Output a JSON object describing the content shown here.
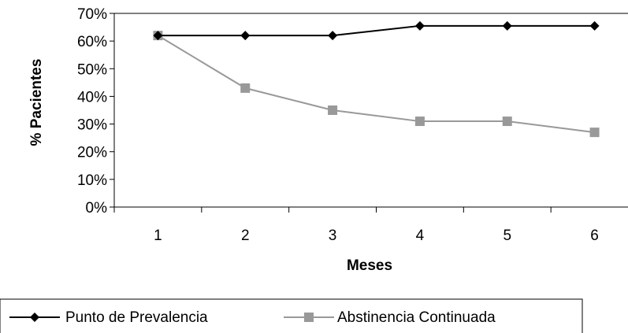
{
  "chart_data": {
    "type": "line",
    "categories": [
      "1",
      "2",
      "3",
      "4",
      "5",
      "6"
    ],
    "series": [
      {
        "name": "Punto de Prevalencia",
        "values": [
          62,
          62,
          62,
          65.5,
          65.5,
          65.5
        ],
        "color": "#000000",
        "marker": "diamond"
      },
      {
        "name": "Abstinencia Continuada",
        "values": [
          62,
          43,
          35,
          31,
          31,
          27
        ],
        "color": "#999999",
        "marker": "square"
      }
    ],
    "xlabel": "Meses",
    "ylabel": "% Pacientes",
    "ylim": [
      0,
      70
    ],
    "yticks": [
      0,
      10,
      20,
      30,
      40,
      50,
      60,
      70
    ],
    "ytick_labels": [
      "0%",
      "10%",
      "20%",
      "30%",
      "40%",
      "50%",
      "60%",
      "70%"
    ],
    "grid": false,
    "legend_position": "bottom"
  }
}
